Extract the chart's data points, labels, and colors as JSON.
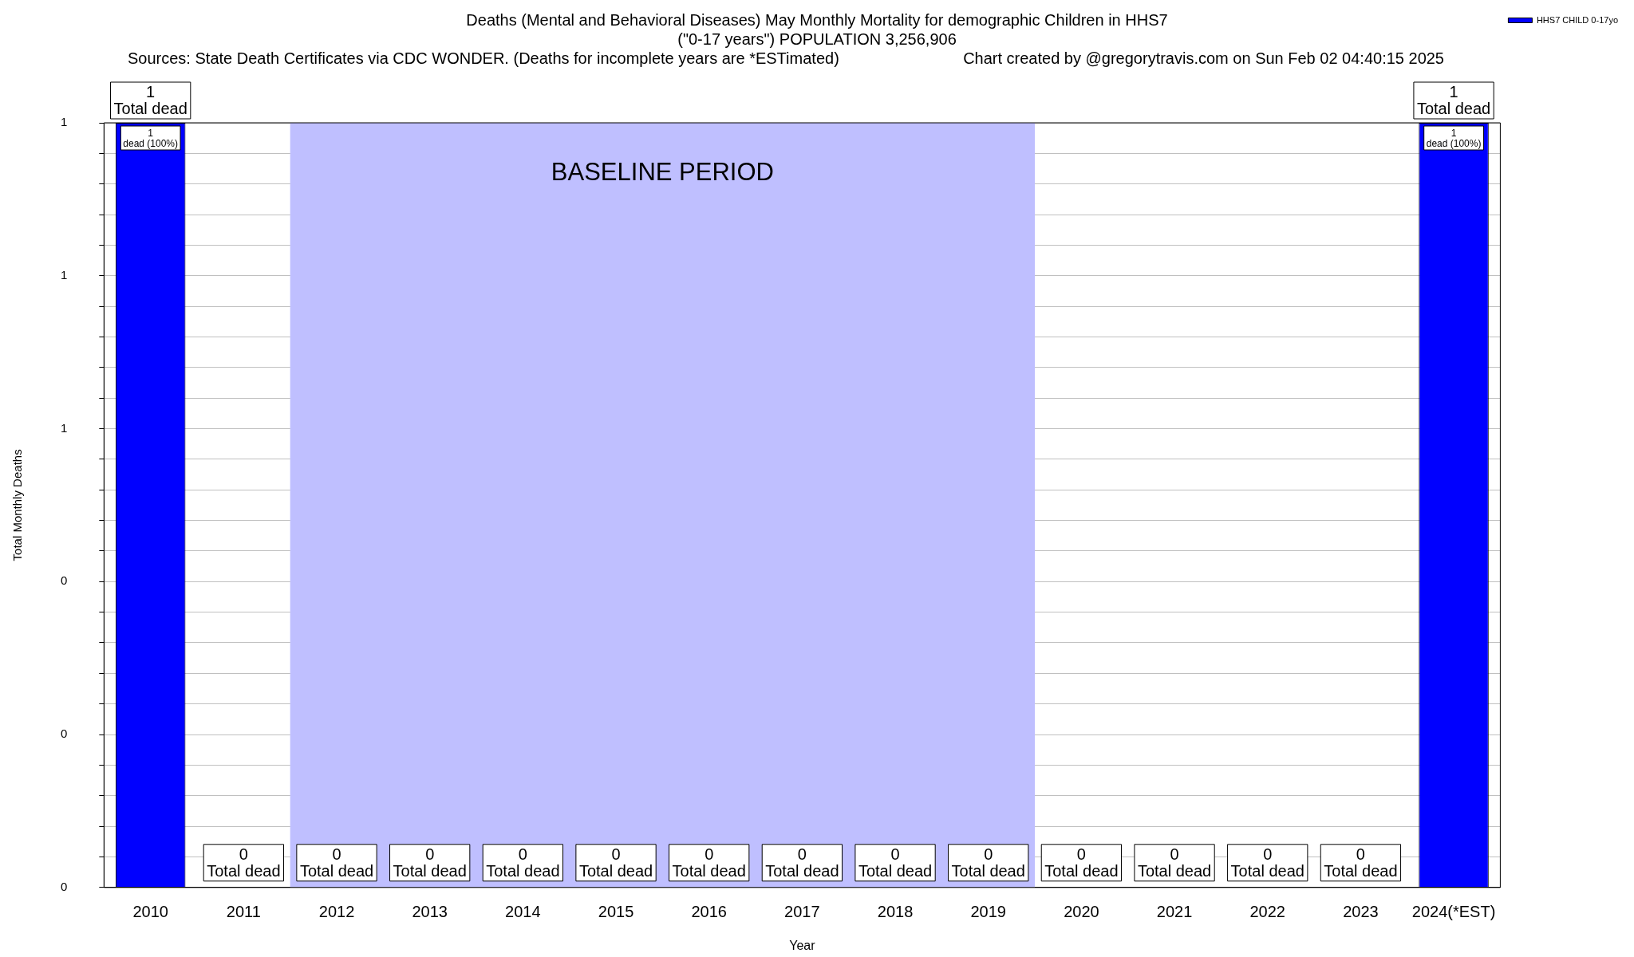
{
  "chart_data": {
    "type": "bar",
    "title": "Deaths (Mental and Behavioral Diseases) May Monthly Mortality for demographic Children in HHS7",
    "subtitle": "(\"0-17 years\") POPULATION 3,256,906",
    "annotations": [
      "Sources: State Death Certificates via CDC WONDER. (Deaths for incomplete years are *ESTimated)",
      "Chart created by @gregorytravis.com on Sun Feb 02 04:40:15 2025",
      {
        "text": "1\ndead (100%)",
        "x": "2010",
        "y": 1
      },
      {
        "text": "1\ndead (100%)",
        "x": "2024(*EST)",
        "y": 1
      }
    ],
    "xlabel": "Year",
    "ylabel": "Total Monthly Deaths",
    "categories": [
      "2010",
      "2011",
      "2012",
      "2013",
      "2014",
      "2015",
      "2016",
      "2017",
      "2018",
      "2019",
      "2020",
      "2021",
      "2022",
      "2023",
      "2024(*EST)"
    ],
    "series": [
      {
        "name": "HHS7 CHILD 0-17yo",
        "color": "#0000ff",
        "values": [
          1,
          0,
          0,
          0,
          0,
          0,
          0,
          0,
          0,
          0,
          0,
          0,
          0,
          0,
          1
        ],
        "value_labels": [
          "1\nTotal dead",
          "0\nTotal dead",
          "0\nTotal dead",
          "0\nTotal dead",
          "0\nTotal dead",
          "0\nTotal dead",
          "0\nTotal dead",
          "0\nTotal dead",
          "0\nTotal dead",
          "0\nTotal dead",
          "0\nTotal dead",
          "0\nTotal dead",
          "0\nTotal dead",
          "0\nTotal dead",
          "1\nTotal dead"
        ]
      }
    ],
    "ylim": [
      0,
      1
    ],
    "yticks": [
      {
        "value": 0,
        "label": "0"
      },
      {
        "value": 0.04,
        "label": null
      },
      {
        "value": 0.08,
        "label": null
      },
      {
        "value": 0.12,
        "label": null
      },
      {
        "value": 0.16,
        "label": null
      },
      {
        "value": 0.2,
        "label": "0"
      },
      {
        "value": 0.24,
        "label": null
      },
      {
        "value": 0.28,
        "label": null
      },
      {
        "value": 0.32,
        "label": null
      },
      {
        "value": 0.36,
        "label": null
      },
      {
        "value": 0.4,
        "label": "0"
      },
      {
        "value": 0.44,
        "label": null
      },
      {
        "value": 0.48,
        "label": null
      },
      {
        "value": 0.52,
        "label": null
      },
      {
        "value": 0.56,
        "label": null
      },
      {
        "value": 0.6,
        "label": "1"
      },
      {
        "value": 0.64,
        "label": null
      },
      {
        "value": 0.68,
        "label": null
      },
      {
        "value": 0.72,
        "label": null
      },
      {
        "value": 0.76,
        "label": null
      },
      {
        "value": 0.8,
        "label": "1"
      },
      {
        "value": 0.84,
        "label": null
      },
      {
        "value": 0.88,
        "label": null
      },
      {
        "value": 0.92,
        "label": null
      },
      {
        "value": 0.96,
        "label": null
      },
      {
        "value": 1,
        "label": "1"
      }
    ],
    "bands": [
      {
        "axis": "x",
        "from": "2012",
        "to": "2019",
        "label": "BASELINE PERIOD",
        "color": "#bfbfff"
      }
    ],
    "grid": "y",
    "legend": "top right"
  }
}
